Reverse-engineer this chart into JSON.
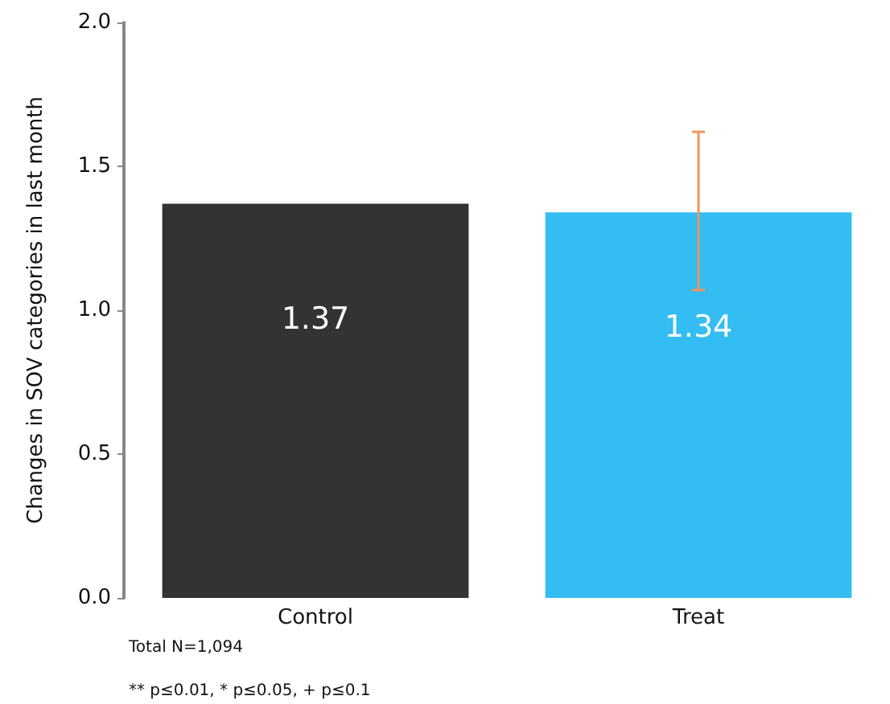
{
  "chart_data": {
    "type": "bar",
    "ylabel": "Changes in SOV categories in last month",
    "categories": [
      "Control",
      "Treat"
    ],
    "values": [
      1.37,
      1.34
    ],
    "colors": [
      "#333333",
      "#33bdf2"
    ],
    "errors": [
      null,
      [
        1.07,
        1.62
      ]
    ],
    "data_labels": true,
    "ylim": [
      0,
      2.0
    ],
    "yticks": [
      {
        "value": 0,
        "label": "0.0"
      },
      {
        "value": 0.5,
        "label": "0.5"
      },
      {
        "value": 1,
        "label": "1.0"
      },
      {
        "value": 1.5,
        "label": "1.5"
      },
      {
        "value": 2,
        "label": "2.0"
      }
    ],
    "annotations": [
      "Total N=1,094",
      "** p≤0.01, * p≤0.05, + p≤0.1"
    ]
  }
}
